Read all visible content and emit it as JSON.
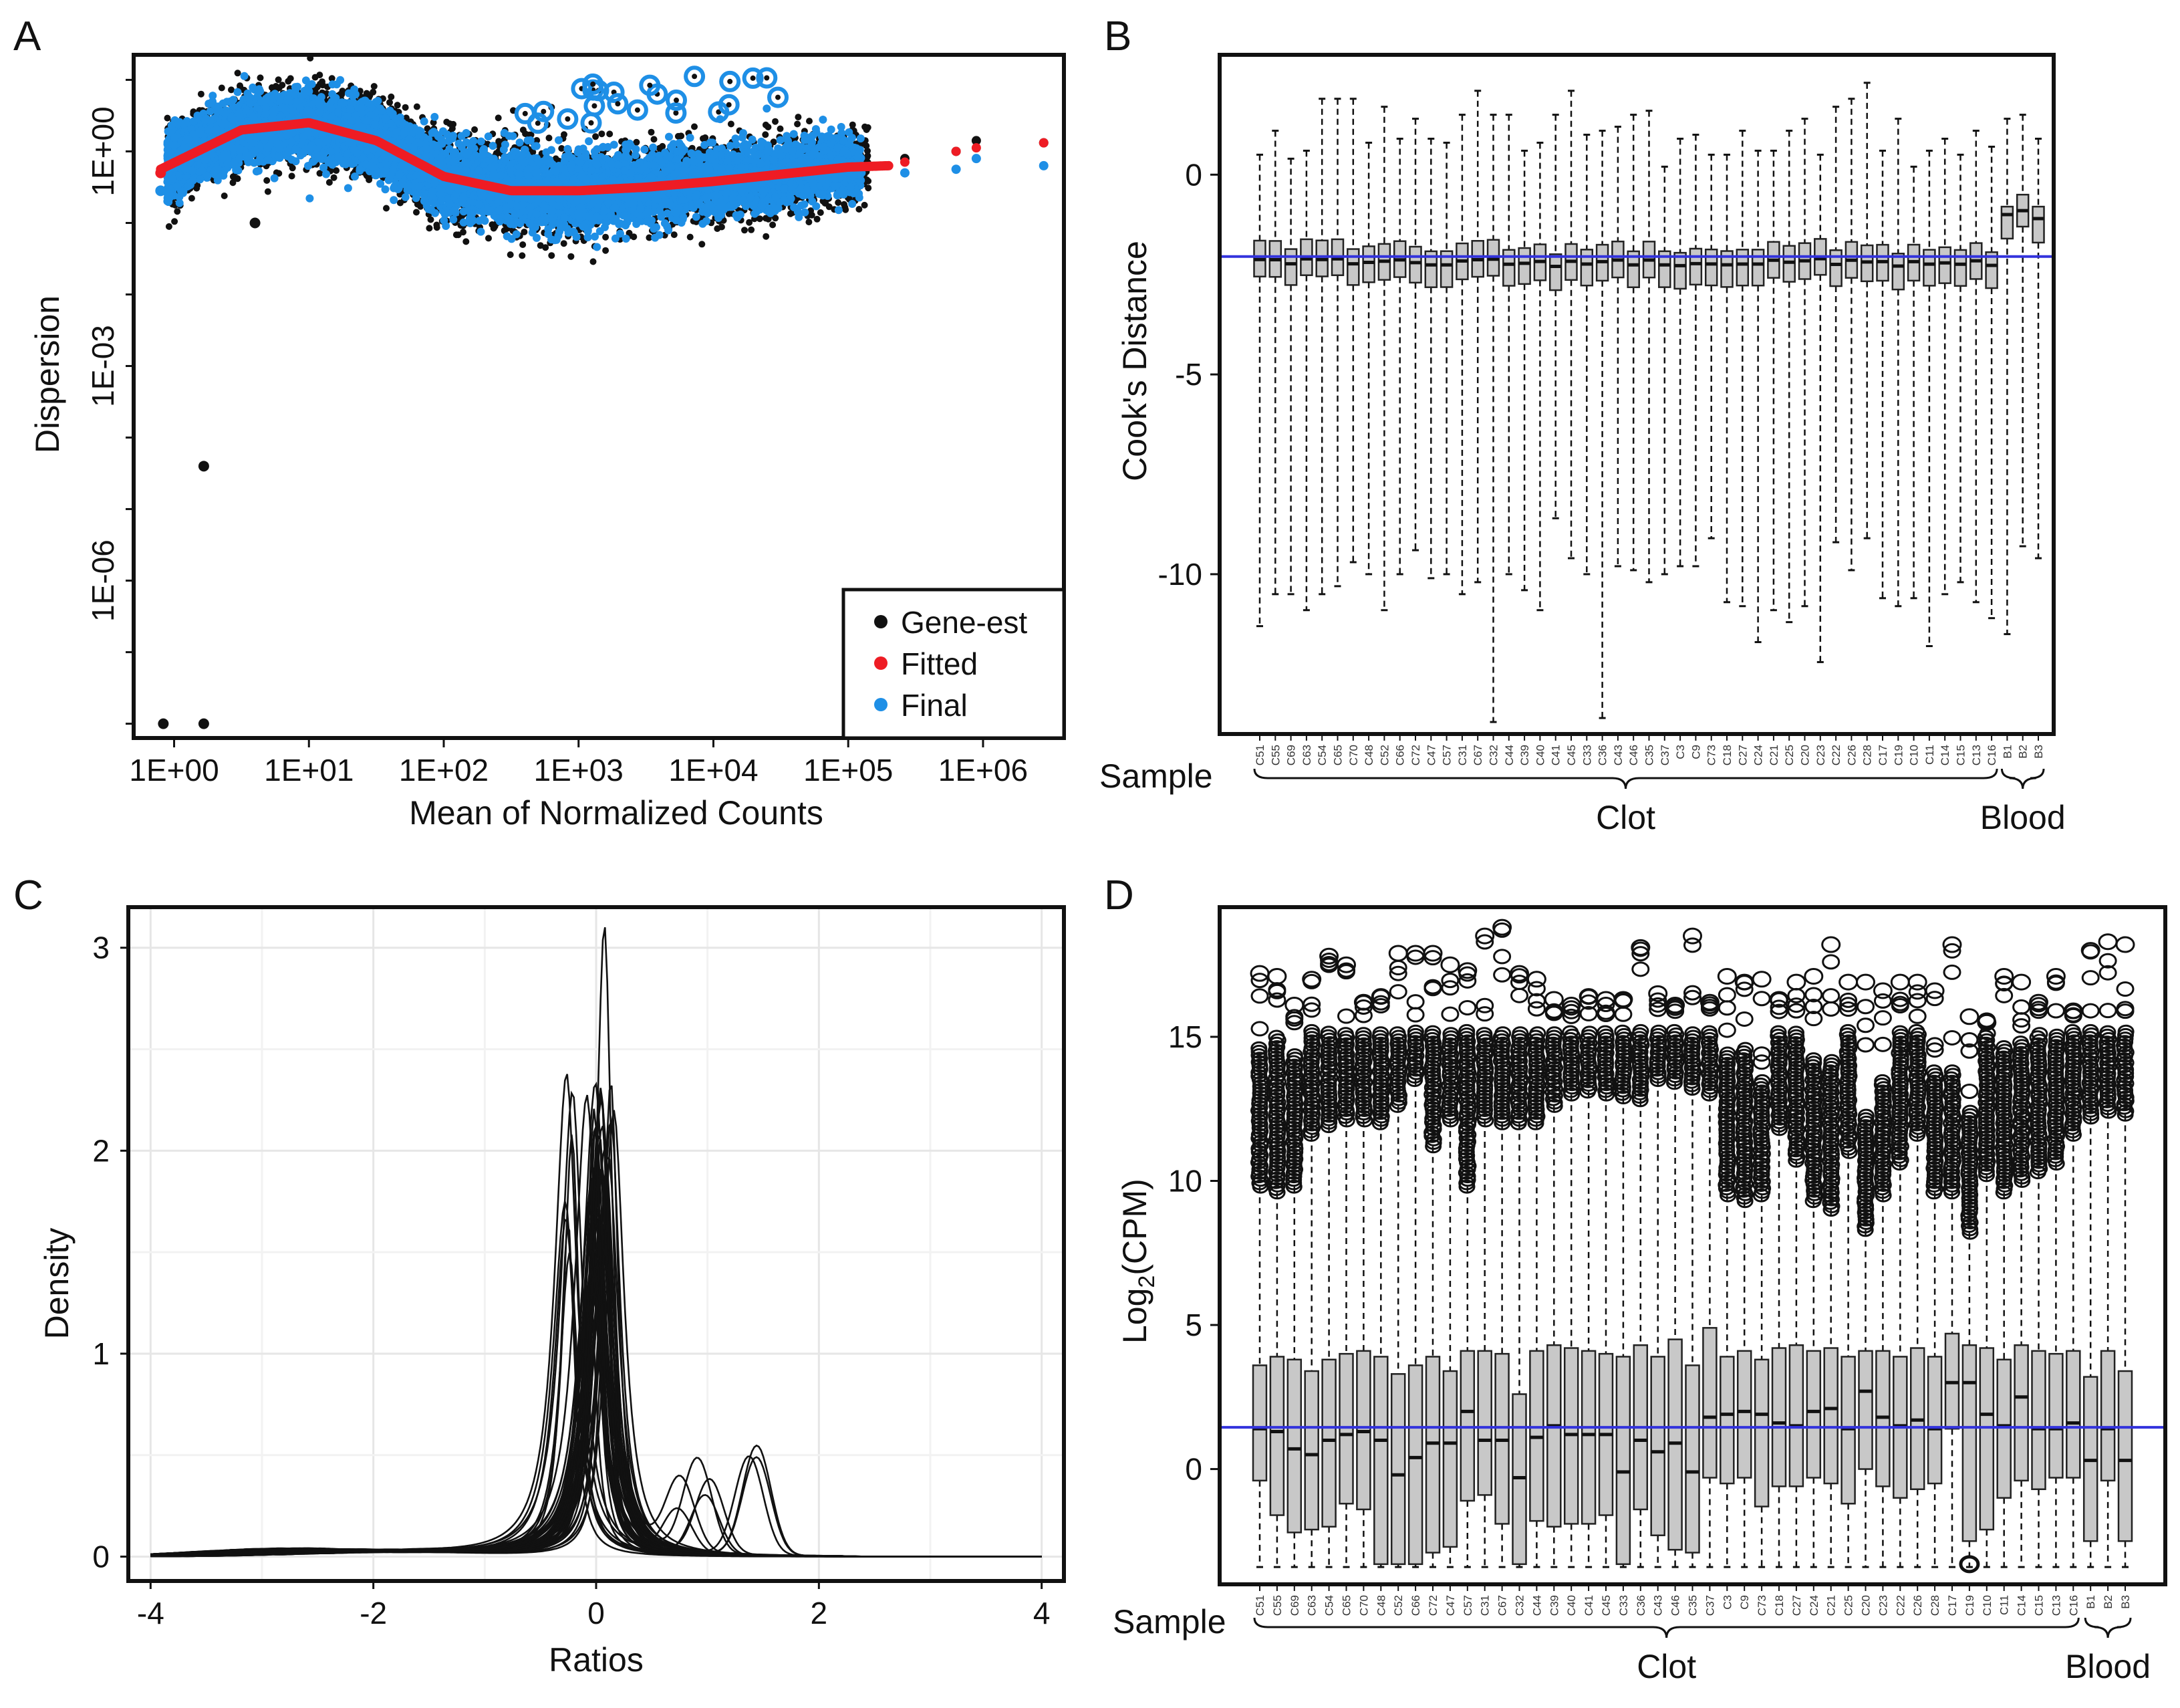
{
  "panels": {
    "A": {
      "letter": "A"
    },
    "B": {
      "letter": "B"
    },
    "C": {
      "letter": "C"
    },
    "D": {
      "letter": "D"
    }
  },
  "chart_data": [
    {
      "id": "A",
      "type": "scatter",
      "title": "",
      "xlabel": "Mean of Normalized Counts",
      "ylabel": "Dispersion",
      "xscale": "log10",
      "yscale": "log10",
      "xlim_log10": [
        -0.3,
        6.6
      ],
      "ylim_log10": [
        -8.2,
        1.35
      ],
      "x_tick_labels": [
        "1E+00",
        "1E+01",
        "1E+02",
        "1E+03",
        "1E+04",
        "1E+05",
        "1E+06"
      ],
      "x_tick_values_log10": [
        0,
        1,
        2,
        3,
        4,
        5,
        6
      ],
      "y_tick_labels": [
        "1E+00",
        "1E-03",
        "1E-06"
      ],
      "y_tick_values_log10": [
        0,
        -3,
        -6
      ],
      "legend": {
        "position": "bottom-right",
        "entries": [
          {
            "label": "Gene-est",
            "color": "#111111"
          },
          {
            "label": "Fitted",
            "color": "#ee1c24"
          },
          {
            "label": "Final",
            "color": "#1e8fe6"
          }
        ]
      },
      "fitted_curve": {
        "x_log10": [
          -0.1,
          0.5,
          1.0,
          1.5,
          2.0,
          2.5,
          3.0,
          3.5,
          4.0,
          4.5,
          5.0,
          5.3
        ],
        "y_log10": [
          -0.25,
          0.3,
          0.4,
          0.15,
          -0.35,
          -0.55,
          -0.55,
          -0.5,
          -0.42,
          -0.32,
          -0.22,
          -0.2
        ]
      },
      "outlier_points": [
        {
          "series": "Gene-est",
          "x_log10": 0.22,
          "y_log10": -4.4
        },
        {
          "series": "Gene-est",
          "x_log10": -0.08,
          "y_log10": -8.0
        },
        {
          "series": "Gene-est",
          "x_log10": 0.22,
          "y_log10": -8.0
        },
        {
          "series": "Gene-est",
          "x_log10": 0.6,
          "y_log10": -1.0
        },
        {
          "series": "Fitted",
          "x_log10": -0.1,
          "y_log10": -0.3
        },
        {
          "series": "Final",
          "x_log10": -0.1,
          "y_log10": -0.55
        }
      ],
      "right_tail_points": [
        {
          "x_log10": 5.42,
          "gene": -0.1,
          "fitted": -0.15,
          "final": -0.3
        },
        {
          "x_log10": 5.8,
          "gene": 0.0,
          "fitted": 0.0,
          "final": -0.25
        },
        {
          "x_log10": 5.95,
          "gene": 0.15,
          "fitted": 0.05,
          "final": -0.1
        },
        {
          "x_log10": 6.45,
          "gene": 0.12,
          "fitted": 0.12,
          "final": -0.2
        }
      ]
    },
    {
      "id": "B",
      "type": "boxplot",
      "ylabel": "Cook's Distance",
      "xlabel": "Sample",
      "ylim": [
        -14,
        3
      ],
      "y_ticks": [
        0,
        -5,
        -10
      ],
      "y_tick_labels": [
        "0",
        "-5",
        "-10"
      ],
      "reference_line": {
        "y": -2.05,
        "color": "#3333dd"
      },
      "categories": [
        "C51",
        "C55",
        "C69",
        "C63",
        "C54",
        "C65",
        "C70",
        "C48",
        "C52",
        "C66",
        "C72",
        "C47",
        "C57",
        "C31",
        "C67",
        "C32",
        "C44",
        "C39",
        "C40",
        "C41",
        "C45",
        "C33",
        "C36",
        "C43",
        "C46",
        "C35",
        "C37",
        "C3",
        "C9",
        "C73",
        "C18",
        "C27",
        "C24",
        "C21",
        "C25",
        "C20",
        "C23",
        "C22",
        "C26",
        "C28",
        "C17",
        "C19",
        "C10",
        "C11",
        "C14",
        "C15",
        "C13",
        "C16",
        "B1",
        "B2",
        "B3"
      ],
      "groups": [
        {
          "label": "Clot",
          "from": "C51",
          "to": "C16"
        },
        {
          "label": "Blood",
          "from": "B1",
          "to": "B3"
        }
      ],
      "typical_box": {
        "q1": -2.7,
        "median": -2.2,
        "q3": -1.8
      },
      "blood_boxes": [
        {
          "sample": "B1",
          "q1": -1.6,
          "median": -1.0,
          "q3": -0.8
        },
        {
          "sample": "B2",
          "q1": -1.3,
          "median": -0.9,
          "q3": -0.5
        },
        {
          "sample": "B3",
          "q1": -1.7,
          "median": -1.1,
          "q3": -0.8
        }
      ],
      "upper_whiskers": [
        0.5,
        1.1,
        0.4,
        0.6,
        1.9,
        1.9,
        1.9,
        0.8,
        1.7,
        0.9,
        1.4,
        0.9,
        0.8,
        1.5,
        2.1,
        1.5,
        1.5,
        0.6,
        0.8,
        1.5,
        2.1,
        1.0,
        1.1,
        1.2,
        1.5,
        1.6,
        0.2,
        0.9,
        1.0,
        0.5,
        0.5,
        1.1,
        0.6,
        0.6,
        1.1,
        1.4,
        0.5,
        1.7,
        1.9,
        2.3,
        0.6,
        1.4,
        0.2,
        0.6,
        0.9,
        0.5,
        1.1,
        0.7,
        1.4,
        1.5,
        0.9
      ],
      "lower_whiskers": [
        -11.3,
        -10.5,
        -10.5,
        -10.9,
        -10.5,
        -10.3,
        -9.7,
        -10.0,
        -10.9,
        -10.0,
        -9.4,
        -10.1,
        -10.0,
        -10.5,
        -10.2,
        -13.7,
        -10.0,
        -10.4,
        -10.9,
        -8.6,
        -9.6,
        -10.0,
        -13.6,
        -9.8,
        -9.9,
        -10.2,
        -10.0,
        -9.8,
        -9.8,
        -9.1,
        -10.7,
        -10.8,
        -11.7,
        -10.9,
        -11.2,
        -10.8,
        -12.2,
        -9.2,
        -9.9,
        -9.1,
        -10.6,
        -10.8,
        -10.6,
        -11.8,
        -10.5,
        -10.2,
        -10.7,
        -11.1,
        -11.5,
        -9.3,
        -9.6
      ]
    },
    {
      "id": "C",
      "type": "line",
      "title": "",
      "xlabel": "Ratios",
      "ylabel": "Density",
      "xlim": [
        -4.2,
        4.2
      ],
      "ylim": [
        -0.12,
        3.2
      ],
      "x_ticks": [
        -4,
        -2,
        0,
        2,
        4
      ],
      "x_tick_labels": [
        "-4",
        "-2",
        "0",
        "2",
        "4"
      ],
      "y_ticks": [
        0,
        1,
        2,
        3
      ],
      "y_tick_labels": [
        "0",
        "1",
        "2",
        "3"
      ],
      "grid": true,
      "series_description": "51 overlapping per-sample density curves of ratios",
      "curve_peaks": [
        {
          "center": 0.02,
          "peak": 3.12
        },
        {
          "center": 0.05,
          "peak": 2.4
        },
        {
          "center": 0.08,
          "peak": 2.0
        },
        {
          "center": -0.03,
          "peak": 1.8
        },
        {
          "center": 0.1,
          "peak": 1.6
        },
        {
          "center": -0.25,
          "peak": 1.25
        },
        {
          "center": 0.0,
          "peak": 1.4
        }
      ],
      "secondary_bumps": [
        {
          "center": 1.0,
          "height": 0.47
        },
        {
          "center": 1.38,
          "height": 0.52
        },
        {
          "center": 0.75,
          "height": 0.35
        }
      ]
    },
    {
      "id": "D",
      "type": "boxplot",
      "ylabel": "Log2(CPM)",
      "ylabel_base": "Log",
      "ylabel_sub": "2",
      "ylabel_suffix": "(CPM)",
      "xlabel": "Sample",
      "ylim": [
        -4,
        19.5
      ],
      "y_ticks": [
        0,
        5,
        10,
        15
      ],
      "y_tick_labels": [
        "0",
        "5",
        "10",
        "15"
      ],
      "reference_line": {
        "y": 1.45,
        "color": "#3333dd"
      },
      "categories": [
        "C51",
        "C55",
        "C69",
        "C63",
        "C54",
        "C65",
        "C70",
        "C48",
        "C52",
        "C66",
        "C72",
        "C47",
        "C57",
        "C31",
        "C67",
        "C32",
        "C44",
        "C39",
        "C40",
        "C41",
        "C45",
        "C33",
        "C36",
        "C43",
        "C46",
        "C35",
        "C37",
        "C3",
        "C9",
        "C73",
        "C18",
        "C27",
        "C24",
        "C21",
        "C25",
        "C20",
        "C23",
        "C22",
        "C26",
        "C28",
        "C17",
        "C19",
        "C10",
        "C11",
        "C14",
        "C15",
        "C13",
        "C16",
        "B1",
        "B2",
        "B3"
      ],
      "groups": [
        {
          "label": "Clot",
          "from": "C51",
          "to": "C16"
        },
        {
          "label": "Blood",
          "from": "B1",
          "to": "B3"
        }
      ],
      "lower_whisker": -3.4,
      "medians": [
        1.4,
        1.3,
        0.7,
        0.5,
        1.0,
        1.2,
        1.3,
        1.0,
        -0.2,
        0.4,
        0.9,
        0.9,
        2.0,
        1.0,
        1.0,
        -0.3,
        1.1,
        1.5,
        1.2,
        1.2,
        1.2,
        -0.1,
        1.0,
        0.6,
        0.9,
        -0.1,
        1.8,
        1.9,
        2.0,
        1.9,
        1.6,
        1.5,
        2.0,
        2.1,
        1.4,
        2.7,
        1.8,
        1.5,
        1.7,
        1.4,
        3.0,
        3.0,
        1.9,
        1.5,
        2.5,
        1.4,
        1.4,
        1.6,
        0.3,
        1.4,
        0.3
      ],
      "q3s": [
        3.6,
        3.9,
        3.8,
        3.4,
        3.8,
        4.0,
        4.1,
        3.9,
        3.3,
        3.6,
        3.9,
        3.4,
        4.1,
        4.1,
        4.0,
        2.6,
        4.1,
        4.3,
        4.2,
        4.1,
        4.0,
        3.9,
        4.3,
        3.9,
        4.5,
        3.6,
        4.9,
        3.9,
        4.1,
        3.8,
        4.2,
        4.3,
        4.1,
        4.2,
        3.9,
        4.1,
        4.1,
        3.9,
        4.2,
        3.9,
        4.7,
        4.3,
        4.2,
        3.8,
        4.3,
        4.1,
        4.0,
        4.1,
        3.2,
        4.1,
        3.4
      ],
      "q1s": [
        -0.4,
        -1.6,
        -2.2,
        -2.1,
        -2.0,
        -1.2,
        -1.4,
        -3.3,
        -3.3,
        -3.3,
        -2.9,
        -2.7,
        -1.1,
        -0.9,
        -1.9,
        -3.3,
        -1.8,
        -2.0,
        -1.9,
        -1.9,
        -1.6,
        -3.3,
        -1.4,
        -2.3,
        -2.8,
        -2.9,
        -0.3,
        -0.5,
        -0.3,
        -1.3,
        -0.6,
        -0.6,
        -0.3,
        -0.5,
        -1.2,
        0.0,
        -0.6,
        -1.0,
        -0.7,
        -0.5,
        1.4,
        -2.5,
        -2.1,
        -1.0,
        -0.4,
        -0.7,
        -0.3,
        -0.3,
        -2.5,
        -0.4,
        -2.5
      ],
      "upper_whiskers": [
        9.8,
        9.6,
        9.8,
        11.6,
        11.9,
        12.1,
        12.1,
        12.0,
        12.6,
        13.5,
        11.2,
        12.1,
        9.8,
        12.1,
        12.0,
        12.0,
        12.0,
        12.6,
        13.0,
        13.1,
        13.0,
        12.9,
        12.8,
        13.5,
        13.4,
        13.2,
        13.0,
        9.5,
        9.3,
        9.5,
        11.8,
        10.7,
        9.3,
        9.0,
        11.0,
        8.3,
        9.5,
        10.6,
        11.6,
        9.6,
        9.6,
        8.2,
        10.2,
        9.6,
        10.0,
        10.3,
        10.6,
        11.6,
        12.2,
        12.4,
        12.3
      ],
      "top_outliers": [
        17.2,
        17.1,
        16.1,
        17.0,
        17.8,
        17.5,
        16.2,
        16.4,
        17.9,
        17.9,
        17.9,
        17.5,
        17.3,
        18.5,
        18.8,
        17.2,
        17.0,
        16.3,
        16.1,
        16.4,
        16.3,
        16.3,
        18.1,
        16.5,
        16.1,
        18.5,
        16.2,
        17.1,
        16.9,
        17.0,
        16.3,
        16.9,
        17.1,
        18.2,
        16.9,
        16.9,
        16.6,
        16.9,
        16.9,
        16.6,
        18.2,
        15.7,
        15.5,
        17.1,
        16.9,
        16.2,
        17.1,
        15.9,
        18.0,
        18.3,
        18.2
      ],
      "low_outlier": {
        "sample": "C19",
        "y": -3.3
      }
    }
  ]
}
